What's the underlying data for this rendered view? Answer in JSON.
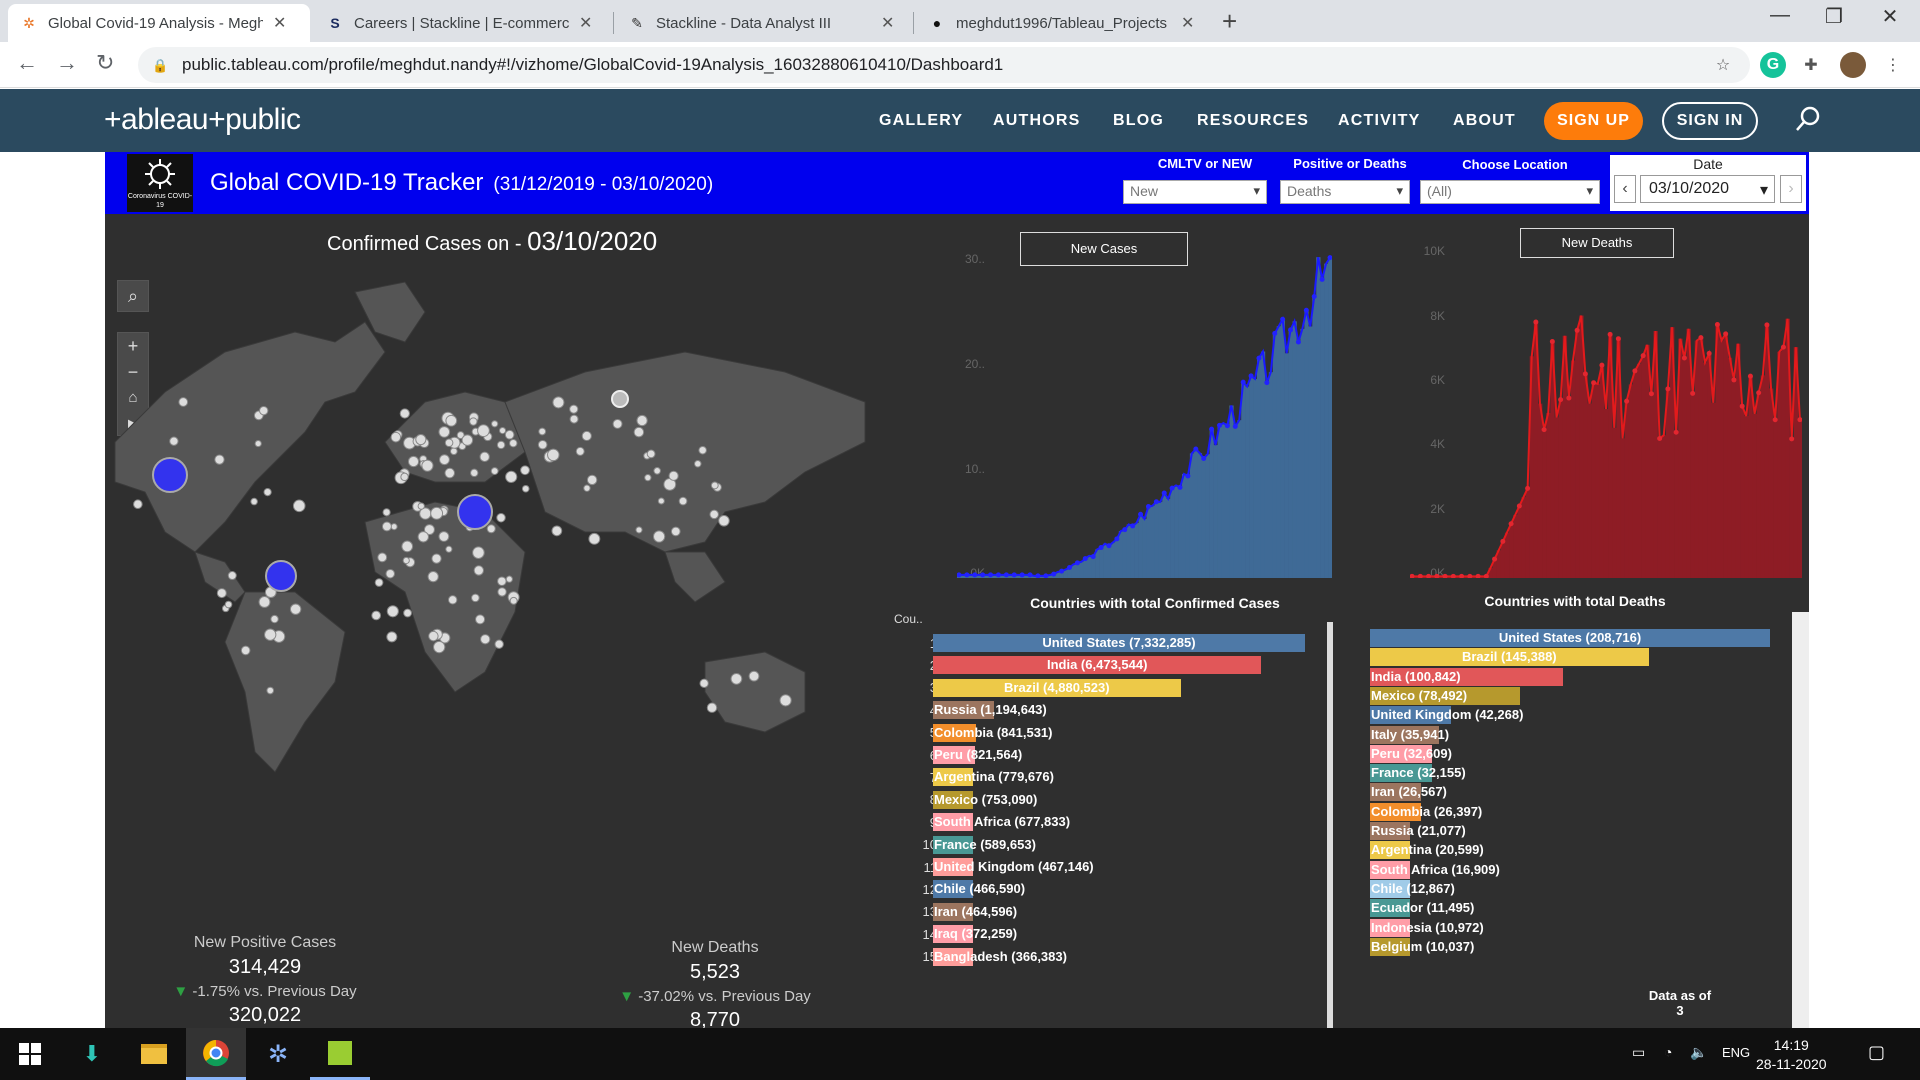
{
  "browser": {
    "tabs": [
      {
        "title": "Global Covid-19 Analysis - Megh",
        "icon": "tableau-icon"
      },
      {
        "title": "Careers | Stackline | E-commerce",
        "icon": "stackline-icon"
      },
      {
        "title": "Stackline - Data Analyst III",
        "icon": "edit-doc-icon"
      },
      {
        "title": "meghdut1996/Tableau_Projects",
        "icon": "github-icon"
      }
    ],
    "url": "public.tableau.com/profile/meghdut.nandy#!/vizhome/GlobalCovid-19Analysis_16032880610410/Dashboard1"
  },
  "site": {
    "logo": "+ableau+public",
    "nav": [
      "GALLERY",
      "AUTHORS",
      "BLOG",
      "RESOURCES",
      "ACTIVITY",
      "ABOUT"
    ],
    "signup": "SIGN UP",
    "signin": "SIGN IN"
  },
  "dashboard": {
    "logo_text": "Coronavirus COVID-19",
    "title": "Global COVID-19 Tracker",
    "subtitle": "(31/12/2019 - 03/10/2020)",
    "filters": [
      {
        "label": "CMLTV or NEW",
        "value": "New"
      },
      {
        "label": "Positive or Deaths",
        "value": "Deaths"
      },
      {
        "label": "Choose  Location",
        "value": "(All)"
      }
    ],
    "date_label": "Date",
    "date_value": "03/10/2020",
    "map_title_prefix": "Confirmed Cases on  - ",
    "map_title_date": "03/10/2020",
    "new_positive": {
      "label": "New Positive Cases",
      "value": "314,429",
      "change": "-1.75% vs. Previous Day",
      "prev": "320,022"
    },
    "new_deaths": {
      "label": "New Deaths",
      "value": "5,523",
      "change": "-37.02% vs. Previous Day",
      "prev": "8,770"
    },
    "cases_chart_label": "New Cases",
    "deaths_chart_label": "New Deaths",
    "cases_ticks": [
      "30..",
      "20..",
      "10..",
      "0K"
    ],
    "deaths_ticks": [
      "10K",
      "8K",
      "6K",
      "4K",
      "2K",
      "0K"
    ],
    "cases_table_title": "Countries with total Confirmed Cases",
    "deaths_table_title": "Countries with total Deaths",
    "cases_header": "Cou..",
    "data_as_of": "Data as of",
    "data_as_of_num": "3",
    "colors": {
      "blue": "#4e79a7",
      "red": "#e15759",
      "yellow": "#edc948",
      "brown": "#9c755f",
      "orange": "#f28e2b",
      "pink": "#ff9da7",
      "teal": "#499894",
      "gold": "#b6992d",
      "lightblue": "#a0cbe8",
      "salmon": "#ff9d9a"
    }
  },
  "chart_data": [
    {
      "type": "bar",
      "title": "Countries with total Confirmed Cases",
      "categories": [
        "United States",
        "India",
        "Brazil",
        "Russia",
        "Colombia",
        "Peru",
        "Argentina",
        "Mexico",
        "South Africa",
        "France",
        "United Kingdom",
        "Chile",
        "Iran",
        "Iraq",
        "Bangladesh"
      ],
      "values": [
        7332285,
        6473544,
        4880523,
        1194643,
        841531,
        821564,
        779676,
        753090,
        677833,
        589653,
        467146,
        466590,
        464596,
        372259,
        366383
      ],
      "labels": [
        "United States (7,332,285)",
        "India (6,473,544)",
        "Brazil (4,880,523)",
        "Russia (1,194,643)",
        "Colombia (841,531)",
        "Peru (821,564)",
        "Argentina (779,676)",
        "Mexico (753,090)",
        "South Africa (677,833)",
        "France (589,653)",
        "United Kingdom (467,146)",
        "Chile (466,590)",
        "Iran (464,596)",
        "Iraq (372,259)",
        "Bangladesh (366,383)"
      ],
      "bar_colors": [
        "blue",
        "red",
        "yellow",
        "brown",
        "orange",
        "pink",
        "yellow",
        "gold",
        "pink",
        "teal",
        "salmon",
        "blue",
        "brown",
        "pink",
        "salmon"
      ]
    },
    {
      "type": "bar",
      "title": "Countries with total Deaths",
      "categories": [
        "United States",
        "Brazil",
        "India",
        "Mexico",
        "United Kingdom",
        "Italy",
        "Peru",
        "France",
        "Iran",
        "Colombia",
        "Russia",
        "Argentina",
        "South Africa",
        "Chile",
        "Ecuador",
        "Indonesia",
        "Belgium"
      ],
      "values": [
        208716,
        145388,
        100842,
        78492,
        42268,
        35941,
        32609,
        32155,
        26567,
        26397,
        21077,
        20599,
        16909,
        12867,
        11495,
        10972,
        10037
      ],
      "labels": [
        "United States (208,716)",
        "Brazil (145,388)",
        "India (100,842)",
        "Mexico (78,492)",
        "United Kingdom (42,268)",
        "Italy (35,941)",
        "Peru (32,609)",
        "France (32,155)",
        "Iran (26,567)",
        "Colombia (26,397)",
        "Russia (21,077)",
        "Argentina (20,599)",
        "South Africa (16,909)",
        "Chile (12,867)",
        "Ecuador (11,495)",
        "Indonesia (10,972)",
        "Belgium (10,037)"
      ],
      "bar_colors": [
        "blue",
        "yellow",
        "red",
        "gold",
        "blue",
        "brown",
        "pink",
        "teal",
        "brown",
        "orange",
        "brown",
        "yellow",
        "pink",
        "lightblue",
        "teal",
        "pink",
        "gold"
      ]
    },
    {
      "type": "area",
      "title": "New Cases",
      "ylim": [
        0,
        33000
      ],
      "trend": "rising from ~0 to ~30000 over period"
    },
    {
      "type": "area",
      "title": "New Deaths",
      "ylim": [
        0,
        10000
      ],
      "trend": "rising from ~0 to ~8000 over period"
    }
  ],
  "taskbar": {
    "time": "14:19",
    "date": "28-11-2020",
    "lang": "ENG"
  }
}
